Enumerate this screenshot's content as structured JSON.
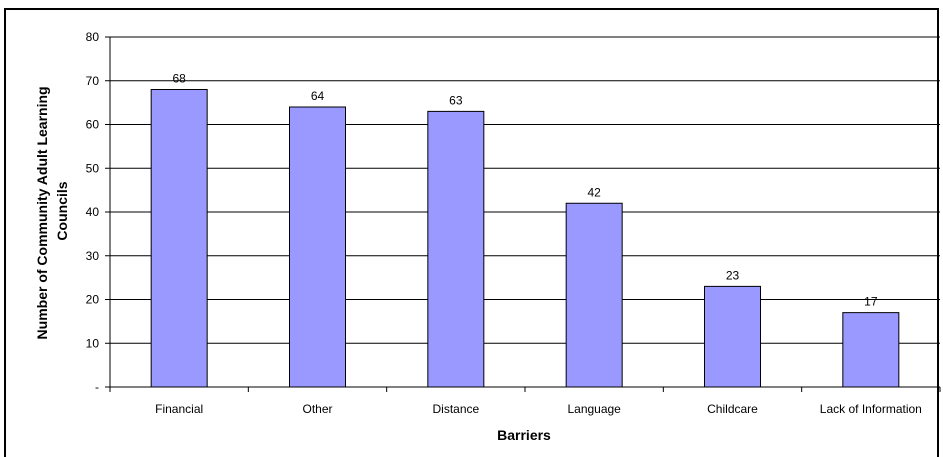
{
  "chart_data": {
    "type": "bar",
    "title": "",
    "xlabel": "Barriers",
    "ylabel_lines": [
      "Number of Community Adult Learning",
      "Councils"
    ],
    "categories": [
      "Financial",
      "Other",
      "Distance",
      "Language",
      "Childcare",
      "Lack of Information"
    ],
    "values": [
      68,
      64,
      63,
      42,
      23,
      17
    ],
    "data_labels": [
      "68",
      "64",
      "63",
      "42",
      "23",
      "17"
    ],
    "ylim": [
      0,
      80
    ],
    "y_ticks": [
      0,
      10,
      20,
      30,
      40,
      50,
      60,
      70,
      80
    ],
    "y_tick_labels": [
      "-",
      "10",
      "20",
      "30",
      "40",
      "50",
      "60",
      "70",
      "80"
    ],
    "grid": true,
    "legend": "none",
    "colors": {
      "bar_fill": "#9999ff",
      "bar_stroke": "#000000",
      "gridline": "#000000"
    }
  }
}
